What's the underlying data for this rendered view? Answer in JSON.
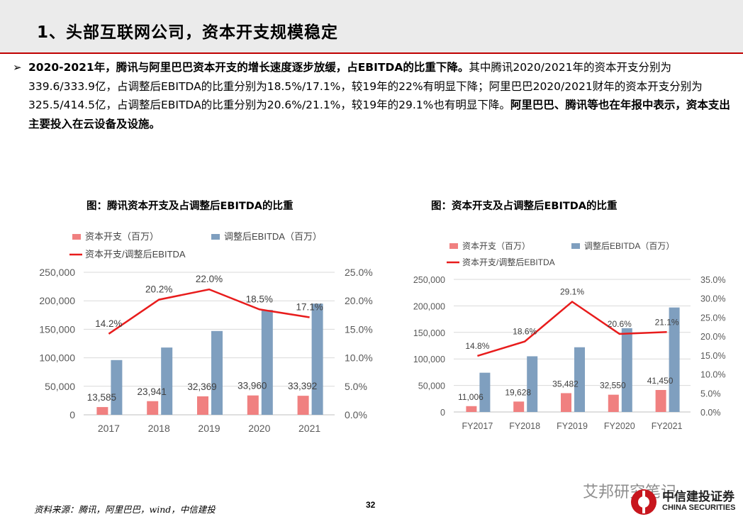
{
  "page": {
    "title": "1、头部互联网公司，资本开支规模稳定",
    "bullet_symbol": "➢",
    "paragraph": {
      "bold_1": "2020-2021年，腾讯与阿里巴巴资本开支的增长速度逐步放缓，占EBITDA的比重下降。",
      "normal_1": "其中腾讯2020/2021年的资本开支分别为339.6/333.9亿，占调整后EBITDA的比重分别为18.5%/17.1%，较19年的22%有明显下降；阿里巴巴2020/2021财年的资本开支分别为325.5/414.5亿，占调整后EBITDA的比重分别为20.6%/21.1%，较19年的29.1%也有明显下降。",
      "bold_2": "阿里巴巴、腾讯等也在年报中表示，资本支出主要投入在云设备及设施。"
    },
    "footer_source": "资料来源：腾讯，阿里巴巴，wind，中信建投",
    "page_number": "32",
    "watermark": "艾邦研究笔记",
    "brand_cn": "中信建投证券",
    "brand_en": "CHINA SECURITIES"
  },
  "colors": {
    "capex": "#f08080",
    "ebitda": "#7f9fbf",
    "ratio_line": "#e81c1c",
    "title_bg": "#ebebeb",
    "accent_rule": "#c00000"
  },
  "chart_data": [
    {
      "type": "bar",
      "title": "图：腾讯资本开支及占调整后EBITDA的比重",
      "categories": [
        "2017",
        "2018",
        "2019",
        "2020",
        "2021"
      ],
      "series": [
        {
          "name": "资本开支（百万）",
          "kind": "bar",
          "axis": "left",
          "values": [
            13585,
            23941,
            32369,
            33960,
            33392
          ],
          "labels": [
            "13,585",
            "23,941",
            "32,369",
            "33,960",
            "33,392"
          ]
        },
        {
          "name": "调整后EBITDA（百万）",
          "kind": "bar",
          "axis": "left",
          "values": [
            96000,
            118000,
            147000,
            184000,
            195000
          ]
        },
        {
          "name": "资本开支/调整后EBITDA",
          "kind": "line",
          "axis": "right",
          "values": [
            14.2,
            20.2,
            22.0,
            18.5,
            17.1
          ],
          "labels": [
            "14.2%",
            "20.2%",
            "22.0%",
            "18.5%",
            "17.1%"
          ]
        }
      ],
      "ylim": [
        0,
        250000
      ],
      "y2lim": [
        0,
        25
      ],
      "yticks": [
        "0",
        "50,000",
        "100,000",
        "150,000",
        "200,000",
        "250,000"
      ],
      "y2ticks": [
        "0.0%",
        "5.0%",
        "10.0%",
        "15.0%",
        "20.0%",
        "25.0%"
      ],
      "legend": "top",
      "grid": true
    },
    {
      "type": "bar",
      "title": "图：资本开支及占调整后EBITDA的比重",
      "categories": [
        "FY2017",
        "FY2018",
        "FY2019",
        "FY2020",
        "FY2021"
      ],
      "series": [
        {
          "name": "资本开支（百万）",
          "kind": "bar",
          "axis": "left",
          "values": [
            11006,
            19628,
            35482,
            32550,
            41450
          ],
          "labels": [
            "11,006",
            "19,628",
            "35,482",
            "32,550",
            "41,450"
          ]
        },
        {
          "name": "调整后EBITDA（百万）",
          "kind": "bar",
          "axis": "left",
          "values": [
            74000,
            105000,
            122000,
            158000,
            197000
          ]
        },
        {
          "name": "资本开支/调整后EBITDA",
          "kind": "line",
          "axis": "right",
          "values": [
            14.8,
            18.6,
            29.1,
            20.6,
            21.1
          ],
          "labels": [
            "14.8%",
            "18.6%",
            "29.1%",
            "20.6%",
            "21.1%"
          ]
        }
      ],
      "ylim": [
        0,
        250000
      ],
      "y2lim": [
        0,
        35
      ],
      "yticks": [
        "0",
        "50,000",
        "100,000",
        "150,000",
        "200,000",
        "250,000"
      ],
      "y2ticks": [
        "0.0%",
        "5.0%",
        "10.0%",
        "15.0%",
        "20.0%",
        "25.0%",
        "30.0%",
        "35.0%"
      ],
      "legend": "top",
      "grid": true
    }
  ]
}
